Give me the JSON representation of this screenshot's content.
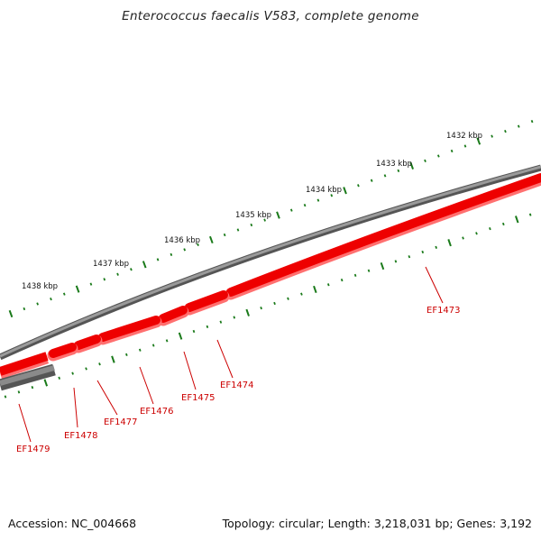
{
  "title": "Enterococcus faecalis V583, complete genome",
  "footer": {
    "accession": "Accession: NC_004668",
    "summary": "Topology: circular; Length: 3,218,031 bp; Genes: 3,192"
  },
  "colors": {
    "backbone": "#7a7a7a",
    "feature_red": "#ee0000",
    "feature_gray": "#6f6f6f",
    "tick": "#1a7a1a",
    "label_red": "#cc0000",
    "tick_label": "#111111"
  },
  "scale_labels": [
    "1432 kbp",
    "1433 kbp",
    "1434 kbp",
    "1435 kbp",
    "1436 kbp",
    "1437 kbp",
    "1438 kbp"
  ],
  "gene_labels": [
    "EF1473",
    "EF1474",
    "EF1475",
    "EF1476",
    "EF1477",
    "EF1478",
    "EF1479"
  ]
}
